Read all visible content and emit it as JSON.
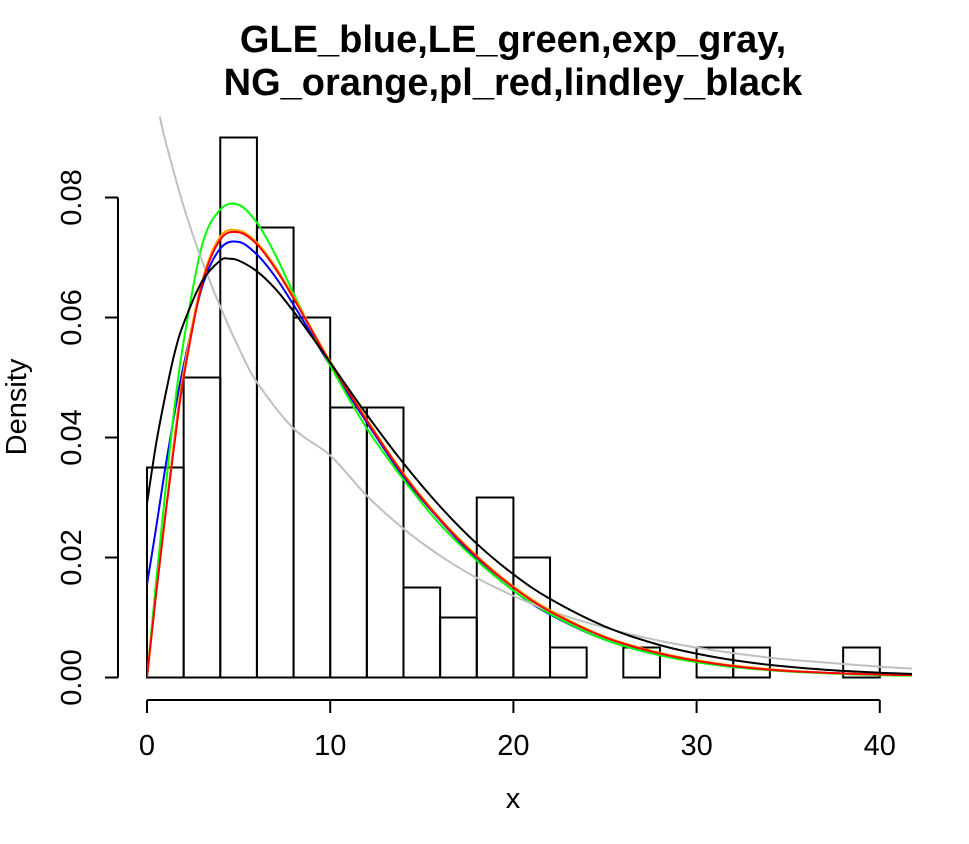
{
  "chart_data": {
    "type": "histogram",
    "title": [
      "GLE_blue,LE_green,exp_gray,",
      "NG_orange,pl_red,lindley_black"
    ],
    "xlabel": "x",
    "ylabel": "Density",
    "xlim": [
      0,
      41.8
    ],
    "ylim": [
      0,
      0.09
    ],
    "xticks": [
      "0",
      "10",
      "20",
      "30",
      "40"
    ],
    "xtick_values": [
      0,
      10,
      20,
      30,
      40
    ],
    "yticks": [
      "0.00",
      "0.02",
      "0.04",
      "0.06",
      "0.08"
    ],
    "ytick_values": [
      0,
      0.02,
      0.04,
      0.06,
      0.08
    ],
    "histogram": {
      "breaks": [
        0,
        2,
        4,
        6,
        8,
        10,
        12,
        14,
        16,
        18,
        20,
        22,
        24,
        26,
        28,
        30,
        32,
        34,
        36,
        38,
        40
      ],
      "density": [
        0.035,
        0.05,
        0.09,
        0.075,
        0.06,
        0.045,
        0.045,
        0.015,
        0.01,
        0.03,
        0.02,
        0.005,
        0.0,
        0.005,
        0.0,
        0.005,
        0.005,
        0.0,
        0.0,
        0.005
      ]
    },
    "series": [
      {
        "color": "#0000ff",
        "x": [
          0,
          0.5,
          1,
          1.5,
          2,
          3,
          4,
          5,
          6,
          7,
          8,
          9,
          10,
          12,
          14,
          16,
          18,
          20,
          22,
          25,
          28,
          31,
          34,
          37,
          40,
          41.8
        ],
        "y": [
          0.0155,
          0.025,
          0.035,
          0.044,
          0.052,
          0.065,
          0.0715,
          0.0726,
          0.0705,
          0.0668,
          0.0621,
          0.0571,
          0.052,
          0.0425,
          0.0335,
          0.0262,
          0.0197,
          0.0145,
          0.0105,
          0.0063,
          0.0037,
          0.0022,
          0.0013,
          0.0008,
          0.0005,
          0.0004
        ]
      },
      {
        "color": "#00ff00",
        "x": [
          0,
          0.5,
          1,
          1.5,
          2,
          3,
          4,
          5,
          6,
          7,
          8,
          9,
          10,
          12,
          14,
          16,
          18,
          20,
          22,
          25,
          28,
          31,
          34,
          37,
          40,
          41.8
        ],
        "y": [
          0.0,
          0.016,
          0.031,
          0.045,
          0.056,
          0.072,
          0.078,
          0.0788,
          0.0758,
          0.0705,
          0.064,
          0.0578,
          0.052,
          0.0415,
          0.033,
          0.0255,
          0.0195,
          0.0145,
          0.0106,
          0.0063,
          0.0037,
          0.0021,
          0.0012,
          0.0007,
          0.0004,
          0.0003
        ]
      },
      {
        "color": "#c0c0c0",
        "x": [
          0.7,
          1,
          2,
          3,
          4,
          5,
          6,
          8,
          10,
          12,
          14,
          16,
          18,
          20,
          22,
          25,
          28,
          31,
          34,
          37,
          40,
          41.8
        ],
        "y": [
          0.0935,
          0.0895,
          0.0785,
          0.0695,
          0.0618,
          0.055,
          0.0492,
          0.0415,
          0.037,
          0.0303,
          0.0248,
          0.0203,
          0.0166,
          0.0136,
          0.0111,
          0.0083,
          0.0061,
          0.0045,
          0.0033,
          0.0025,
          0.0018,
          0.0015
        ]
      },
      {
        "color": "#ffa500",
        "x": [
          0,
          0.5,
          1,
          1.5,
          2,
          3,
          4,
          5,
          6,
          7,
          8,
          9,
          10,
          12,
          14,
          16,
          18,
          20,
          22,
          25,
          28,
          31,
          34,
          37,
          40,
          41.8
        ],
        "y": [
          0.0,
          0.014,
          0.027,
          0.04,
          0.051,
          0.066,
          0.0735,
          0.0745,
          0.0725,
          0.0685,
          0.0635,
          0.058,
          0.0527,
          0.043,
          0.034,
          0.0265,
          0.0203,
          0.0152,
          0.0112,
          0.0068,
          0.0041,
          0.0024,
          0.0014,
          0.0008,
          0.0005,
          0.0004
        ]
      },
      {
        "color": "#ff0000",
        "x": [
          0,
          0.5,
          1,
          1.5,
          2,
          3,
          4,
          5,
          6,
          7,
          8,
          9,
          10,
          12,
          14,
          16,
          18,
          20,
          22,
          25,
          28,
          31,
          34,
          37,
          40,
          41.8
        ],
        "y": [
          0.0,
          0.014,
          0.027,
          0.039,
          0.05,
          0.0655,
          0.073,
          0.0742,
          0.0722,
          0.0682,
          0.0632,
          0.0578,
          0.0525,
          0.0428,
          0.0338,
          0.0263,
          0.0201,
          0.015,
          0.011,
          0.0067,
          0.004,
          0.0023,
          0.0013,
          0.0008,
          0.0005,
          0.0004
        ]
      },
      {
        "color": "#000000",
        "x": [
          0,
          0.5,
          1,
          1.5,
          2,
          3,
          4,
          4.5,
          5,
          6,
          7,
          8,
          9,
          10,
          12,
          14,
          16,
          18,
          20,
          22,
          25,
          28,
          31,
          34,
          37,
          40,
          41.8
        ],
        "y": [
          0.029,
          0.039,
          0.047,
          0.054,
          0.059,
          0.066,
          0.0695,
          0.0698,
          0.0695,
          0.0677,
          0.0648,
          0.061,
          0.0568,
          0.0525,
          0.0438,
          0.0357,
          0.0285,
          0.0223,
          0.0172,
          0.0131,
          0.0085,
          0.0054,
          0.0034,
          0.0021,
          0.0013,
          0.0008,
          0.0006
        ]
      }
    ]
  }
}
